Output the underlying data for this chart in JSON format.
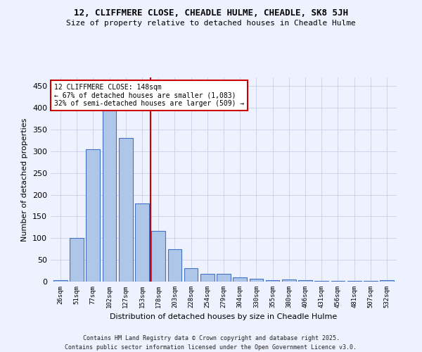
{
  "title_line1": "12, CLIFFMERE CLOSE, CHEADLE HULME, CHEADLE, SK8 5JH",
  "title_line2": "Size of property relative to detached houses in Cheadle Hulme",
  "xlabel": "Distribution of detached houses by size in Cheadle Hulme",
  "ylabel": "Number of detached properties",
  "categories": [
    "26sqm",
    "51sqm",
    "77sqm",
    "102sqm",
    "127sqm",
    "153sqm",
    "178sqm",
    "203sqm",
    "228sqm",
    "254sqm",
    "279sqm",
    "304sqm",
    "330sqm",
    "355sqm",
    "380sqm",
    "406sqm",
    "431sqm",
    "456sqm",
    "481sqm",
    "507sqm",
    "532sqm"
  ],
  "values": [
    4,
    101,
    304,
    416,
    330,
    180,
    116,
    75,
    30,
    18,
    18,
    9,
    6,
    3,
    5,
    3,
    1,
    1,
    2,
    1,
    3
  ],
  "bar_color": "#aec6e8",
  "bar_edge_color": "#4472c4",
  "vline_x": 5.5,
  "vline_color": "#cc0000",
  "annotation_text": "12 CLIFFMERE CLOSE: 148sqm\n← 67% of detached houses are smaller (1,083)\n32% of semi-detached houses are larger (509) →",
  "annotation_box_color": "#ffffff",
  "annotation_box_edge": "#cc0000",
  "footer_line1": "Contains HM Land Registry data © Crown copyright and database right 2025.",
  "footer_line2": "Contains public sector information licensed under the Open Government Licence v3.0.",
  "background_color": "#eef2ff",
  "ylim": [
    0,
    470
  ],
  "yticks": [
    0,
    50,
    100,
    150,
    200,
    250,
    300,
    350,
    400,
    450
  ],
  "figsize": [
    6.0,
    5.0
  ],
  "dpi": 100
}
